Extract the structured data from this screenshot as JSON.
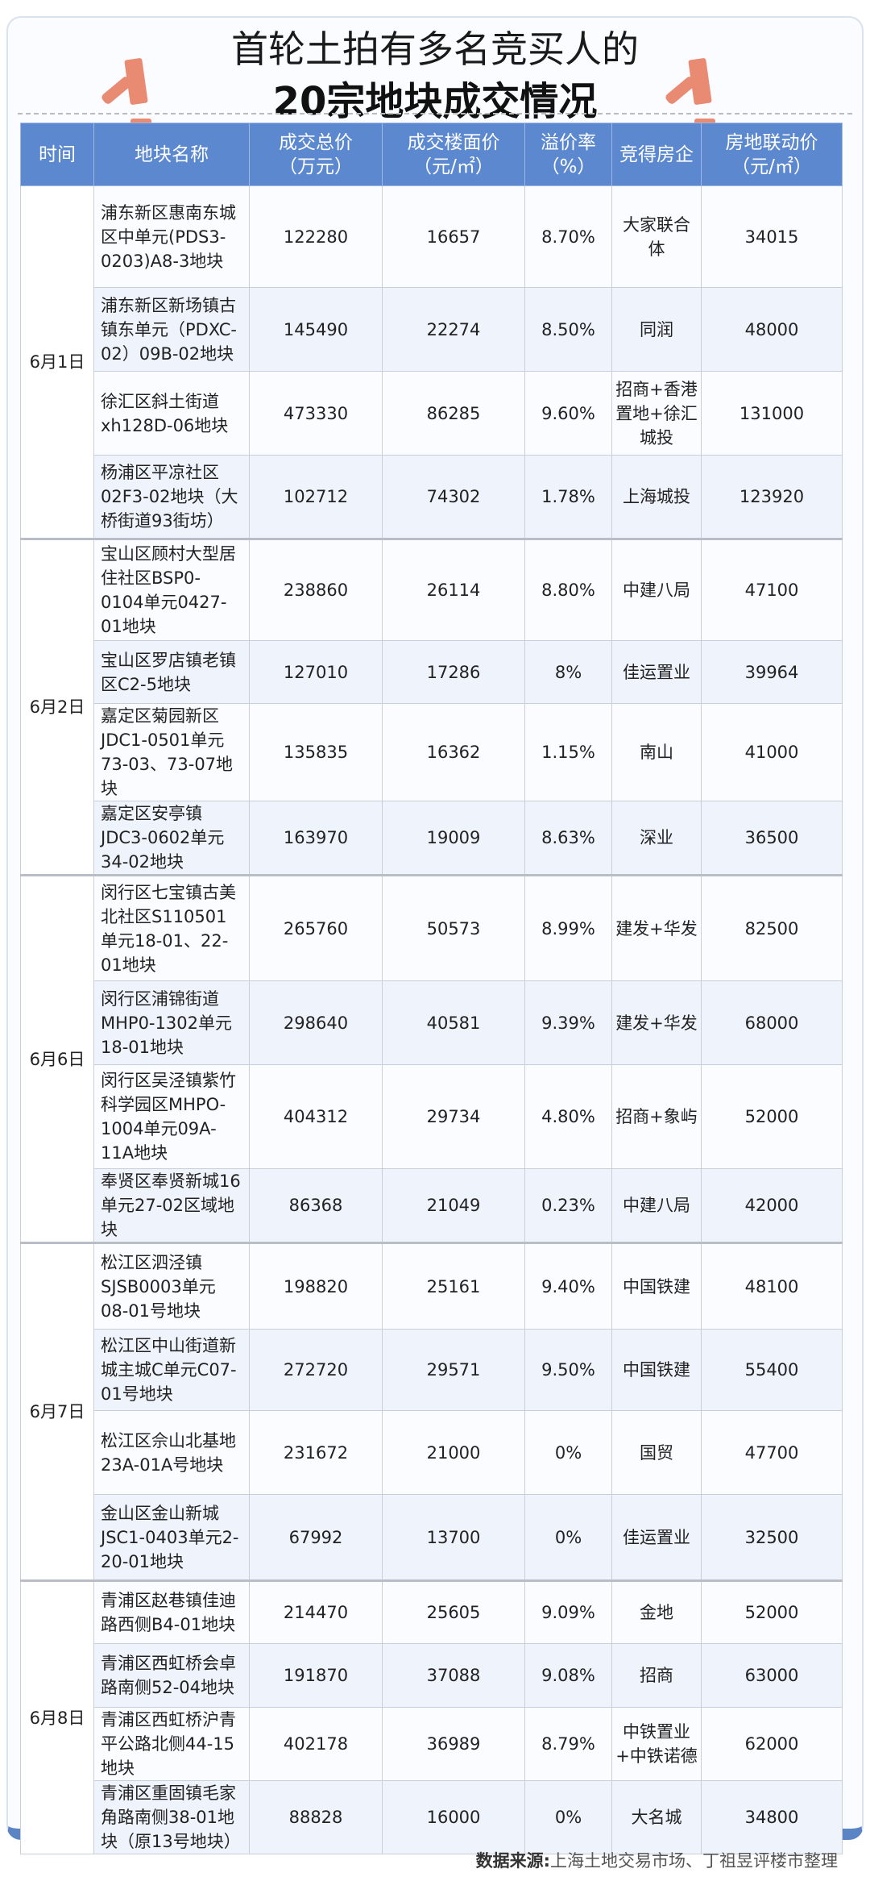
{
  "title": {
    "line1": "首轮土拍有多名竞买人的",
    "line2": "20宗地块成交情况"
  },
  "colors": {
    "header": "#5b88cf",
    "accent": "#e98a72",
    "alt_row": "#eef3fc"
  },
  "headers": [
    "时间",
    "地块名称",
    "成交总价\n（万元）",
    "成交楼面价\n（元/㎡）",
    "溢价率\n（%）",
    "竞得房企",
    "房地联动价\n（元/㎡）"
  ],
  "groups": [
    {
      "date": "6月1日",
      "rows": [
        [
          "浦东新区惠南东城区中单元(PDS3-0203)A8-3地块",
          "122280",
          "16657",
          "8.70%",
          "大家联合体",
          "34015"
        ],
        [
          "浦东新区新场镇古镇东单元（PDXC-02）09B-02地块",
          "145490",
          "22274",
          "8.50%",
          "同润",
          "48000"
        ],
        [
          "徐汇区斜土街道xh128D-06地块",
          "473330",
          "86285",
          "9.60%",
          "招商+香港置地+徐汇城投",
          "131000"
        ],
        [
          "杨浦区平凉社区02F3-02地块（大桥街道93街坊）",
          "102712",
          "74302",
          "1.78%",
          "上海城投",
          "123920"
        ]
      ]
    },
    {
      "date": "6月2日",
      "rows": [
        [
          "宝山区顾村大型居住社区BSP0-0104单元0427-01地块",
          "238860",
          "26114",
          "8.80%",
          "中建八局",
          "47100"
        ],
        [
          "宝山区罗店镇老镇区C2-5地块",
          "127010",
          "17286",
          "8%",
          "佳运置业",
          "39964"
        ],
        [
          "嘉定区菊园新区JDC1-0501单元73-03、73-07地块",
          "135835",
          "16362",
          "1.15%",
          "南山",
          "41000"
        ],
        [
          "嘉定区安亭镇JDC3-0602单元34-02地块",
          "163970",
          "19009",
          "8.63%",
          "深业",
          "36500"
        ]
      ]
    },
    {
      "date": "6月6日",
      "rows": [
        [
          "闵行区七宝镇古美北社区S110501单元18-01、22-01地块",
          "265760",
          "50573",
          "8.99%",
          "建发+华发",
          "82500"
        ],
        [
          "闵行区浦锦街道MHP0-1302单元18-01地块",
          "298640",
          "40581",
          "9.39%",
          "建发+华发",
          "68000"
        ],
        [
          "闵行区吴泾镇紫竹科学园区MHPO-1004单元09A-11A地块",
          "404312",
          "29734",
          "4.80%",
          "招商+象屿",
          "52000"
        ],
        [
          "奉贤区奉贤新城16单元27-02区域地块",
          "86368",
          "21049",
          "0.23%",
          "中建八局",
          "42000"
        ]
      ]
    },
    {
      "date": "6月7日",
      "rows": [
        [
          "松江区泗泾镇SJSB0003单元08-01号地块",
          "198820",
          "25161",
          "9.40%",
          "中国铁建",
          "48100"
        ],
        [
          "松江区中山街道新城主城C单元C07-01号地块",
          "272720",
          "29571",
          "9.50%",
          "中国铁建",
          "55400"
        ],
        [
          "松江区佘山北基地23A-01A号地块",
          "231672",
          "21000",
          "0%",
          "国贸",
          "47700"
        ],
        [
          "金山区金山新城JSC1-0403单元2-20-01地块",
          "67992",
          "13700",
          "0%",
          "佳运置业",
          "32500"
        ]
      ]
    },
    {
      "date": "6月8日",
      "rows": [
        [
          "青浦区赵巷镇佳迪路西侧B4-01地块",
          "214470",
          "25605",
          "9.09%",
          "金地",
          "52000"
        ],
        [
          "青浦区西虹桥会卓路南侧52-04地块",
          "191870",
          "37088",
          "9.08%",
          "招商",
          "63000"
        ],
        [
          "青浦区西虹桥沪青平公路北侧44-15地块",
          "402178",
          "36989",
          "8.79%",
          "中铁置业+中铁诺德",
          "62000"
        ],
        [
          "青浦区重固镇毛家角路南侧38-01地块（原13号地块）",
          "88828",
          "16000",
          "0%",
          "大名城",
          "34800"
        ]
      ]
    }
  ],
  "source": {
    "label": "数据来源:",
    "text": "上海土地交易市场、丁祖昱评楼市整理"
  }
}
